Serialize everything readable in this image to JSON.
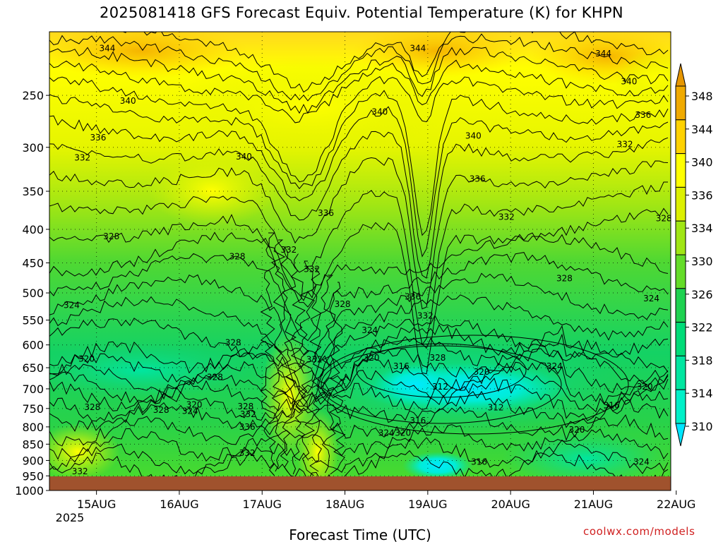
{
  "chart_data": {
    "type": "heatmap",
    "title": "2025081418 GFS Forecast Equiv. Potential Temperature (K) for KHPN",
    "xlabel": "Forecast Time (UTC)",
    "ylabel": "",
    "x_ticks": [
      "15AUG",
      "16AUG",
      "17AUG",
      "18AUG",
      "19AUG",
      "20AUG",
      "21AUG",
      "22AUG"
    ],
    "x_year_label": "2025",
    "y_scale": "log",
    "y_ticks": [
      250,
      300,
      350,
      400,
      450,
      500,
      550,
      600,
      650,
      700,
      750,
      800,
      850,
      900,
      950,
      1000
    ],
    "ylim": [
      200,
      1000
    ],
    "colorbar": {
      "levels": [
        310,
        314,
        318,
        322,
        326,
        330,
        334,
        336,
        340,
        344,
        348
      ],
      "colors": [
        "#00e6ff",
        "#00f0c8",
        "#00e6a0",
        "#00dc78",
        "#1ed250",
        "#64dc28",
        "#a0e614",
        "#dcf000",
        "#ffff00",
        "#ffd200",
        "#f0aa00",
        "#e69600"
      ],
      "extend": "both"
    },
    "contour_labels": [
      {
        "t": 0.63,
        "p": 212,
        "v": "344"
      },
      {
        "t": 4.38,
        "p": 212,
        "v": "344"
      },
      {
        "t": 6.62,
        "p": 216,
        "v": "344"
      },
      {
        "t": 0.88,
        "p": 255,
        "v": "340"
      },
      {
        "t": 3.92,
        "p": 265,
        "v": "340"
      },
      {
        "t": 5.05,
        "p": 288,
        "v": "340"
      },
      {
        "t": 2.28,
        "p": 310,
        "v": "340"
      },
      {
        "t": 6.93,
        "p": 238,
        "v": "340"
      },
      {
        "t": 0.52,
        "p": 290,
        "v": "336"
      },
      {
        "t": 3.27,
        "p": 378,
        "v": "336"
      },
      {
        "t": 5.1,
        "p": 335,
        "v": "336"
      },
      {
        "t": 7.1,
        "p": 268,
        "v": "336"
      },
      {
        "t": 4.32,
        "p": 507,
        "v": "336"
      },
      {
        "t": 0.33,
        "p": 311,
        "v": "332"
      },
      {
        "t": 2.82,
        "p": 430,
        "v": "332"
      },
      {
        "t": 3.1,
        "p": 460,
        "v": "332"
      },
      {
        "t": 5.45,
        "p": 383,
        "v": "332"
      },
      {
        "t": 6.88,
        "p": 297,
        "v": "332"
      },
      {
        "t": 4.47,
        "p": 542,
        "v": "332"
      },
      {
        "t": 3.13,
        "p": 632,
        "v": "332"
      },
      {
        "t": 2.32,
        "p": 877,
        "v": "332"
      },
      {
        "t": 0.3,
        "p": 935,
        "v": "332"
      },
      {
        "t": 1.78,
        "p": 975,
        "v": "332"
      },
      {
        "t": 0.68,
        "p": 410,
        "v": "328"
      },
      {
        "t": 2.2,
        "p": 440,
        "v": "328"
      },
      {
        "t": 3.47,
        "p": 520,
        "v": "328"
      },
      {
        "t": 2.15,
        "p": 595,
        "v": "328"
      },
      {
        "t": 1.93,
        "p": 672,
        "v": "328"
      },
      {
        "t": 0.45,
        "p": 747,
        "v": "328"
      },
      {
        "t": 1.28,
        "p": 754,
        "v": "328"
      },
      {
        "t": 2.3,
        "p": 745,
        "v": "328"
      },
      {
        "t": 6.15,
        "p": 475,
        "v": "328"
      },
      {
        "t": 7.35,
        "p": 385,
        "v": "328"
      },
      {
        "t": 4.62,
        "p": 628,
        "v": "328"
      },
      {
        "t": 3.22,
        "p": 972,
        "v": "328"
      },
      {
        "t": 2.32,
        "p": 800,
        "v": "336"
      },
      {
        "t": 2.33,
        "p": 765,
        "v": "332"
      },
      {
        "t": 0.2,
        "p": 522,
        "v": "324"
      },
      {
        "t": 3.8,
        "p": 570,
        "v": "324"
      },
      {
        "t": 6.03,
        "p": 647,
        "v": "324"
      },
      {
        "t": 7.2,
        "p": 510,
        "v": "324"
      },
      {
        "t": 1.63,
        "p": 757,
        "v": "324"
      },
      {
        "t": 4.0,
        "p": 817,
        "v": "324"
      },
      {
        "t": 7.08,
        "p": 905,
        "v": "324"
      },
      {
        "t": 0.38,
        "p": 630,
        "v": "320"
      },
      {
        "t": 3.82,
        "p": 628,
        "v": "320"
      },
      {
        "t": 5.15,
        "p": 660,
        "v": "320"
      },
      {
        "t": 7.12,
        "p": 695,
        "v": "320"
      },
      {
        "t": 1.68,
        "p": 740,
        "v": "320"
      },
      {
        "t": 4.2,
        "p": 817,
        "v": "320"
      },
      {
        "t": 6.3,
        "p": 808,
        "v": "320"
      },
      {
        "t": 4.18,
        "p": 647,
        "v": "316"
      },
      {
        "t": 4.38,
        "p": 783,
        "v": "316"
      },
      {
        "t": 6.72,
        "p": 742,
        "v": "316"
      },
      {
        "t": 5.12,
        "p": 905,
        "v": "316"
      },
      {
        "t": 4.65,
        "p": 695,
        "v": "312"
      },
      {
        "t": 5.32,
        "p": 748,
        "v": "312"
      }
    ]
  },
  "credit": "coolwx.com/models"
}
